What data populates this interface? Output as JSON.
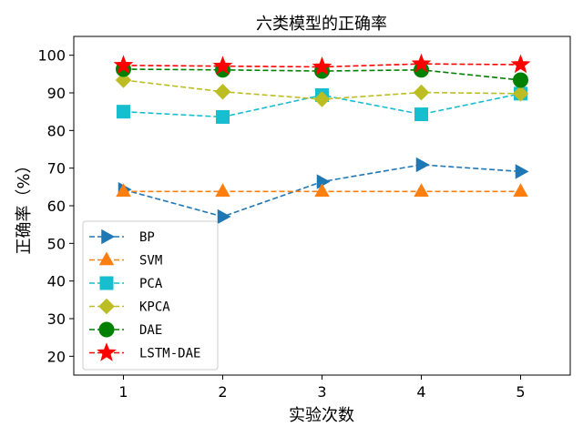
{
  "chart_data": {
    "type": "line",
    "title": "六类模型的正确率",
    "xlabel": "实验次数",
    "ylabel": "正确率（%）",
    "x": [
      1,
      2,
      3,
      4,
      5
    ],
    "xlim": [
      0.5,
      5.5
    ],
    "ylim": [
      15,
      105
    ],
    "yticks": [
      20,
      30,
      40,
      50,
      60,
      70,
      80,
      90,
      100
    ],
    "grid": false,
    "legend_position": "lower-left",
    "series": [
      {
        "name": "BP",
        "values": [
          64.3,
          57.1,
          66.4,
          70.9,
          69.1
        ],
        "color": "#1f77b4",
        "marker": "triangle-right"
      },
      {
        "name": "SVM",
        "values": [
          63.8,
          63.8,
          63.8,
          63.8,
          63.8
        ],
        "color": "#ff7f0e",
        "marker": "triangle-up"
      },
      {
        "name": "PCA",
        "values": [
          85.0,
          83.6,
          89.4,
          84.3,
          89.8
        ],
        "color": "#17becf",
        "marker": "square"
      },
      {
        "name": "KPCA",
        "values": [
          93.4,
          90.3,
          88.3,
          90.1,
          89.8
        ],
        "color": "#bcbd22",
        "marker": "diamond"
      },
      {
        "name": "DAE",
        "values": [
          96.3,
          96.1,
          95.8,
          96.1,
          93.4
        ],
        "color": "#008000",
        "marker": "circle"
      },
      {
        "name": "LSTM-DAE",
        "values": [
          97.3,
          97.1,
          96.9,
          97.7,
          97.5
        ],
        "color": "#ff0000",
        "marker": "star"
      }
    ]
  }
}
